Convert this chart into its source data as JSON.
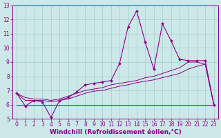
{
  "xlabel": "Windchill (Refroidissement éolien,°C)",
  "background_color": "#cce8e8",
  "grid_color": "#aacccc",
  "line_color": "#880088",
  "x_data": [
    0,
    1,
    2,
    3,
    4,
    5,
    6,
    7,
    8,
    9,
    10,
    11,
    12,
    13,
    14,
    15,
    16,
    17,
    18,
    19,
    20,
    21,
    22,
    23
  ],
  "y_main": [
    6.8,
    5.9,
    6.3,
    6.2,
    5.1,
    6.3,
    6.5,
    6.9,
    7.4,
    7.5,
    7.6,
    7.7,
    8.9,
    11.5,
    12.6,
    10.4,
    8.5,
    11.7,
    10.5,
    9.2,
    9.1,
    9.1,
    9.1,
    6.0
  ],
  "y_line1": [
    6.8,
    6.5,
    6.4,
    6.4,
    6.3,
    6.4,
    6.6,
    6.8,
    7.0,
    7.1,
    7.2,
    7.4,
    7.5,
    7.6,
    7.7,
    7.9,
    8.0,
    8.2,
    8.4,
    8.6,
    9.0,
    9.0,
    8.85,
    6.0
  ],
  "y_line2": [
    6.8,
    6.3,
    6.3,
    6.3,
    6.2,
    6.3,
    6.4,
    6.6,
    6.8,
    6.95,
    7.0,
    7.15,
    7.3,
    7.4,
    7.55,
    7.65,
    7.75,
    7.9,
    8.05,
    8.2,
    8.5,
    8.7,
    8.85,
    6.0
  ],
  "y_flat": [
    6.0,
    6.0,
    6.0,
    6.0,
    6.0,
    6.0,
    6.0,
    6.0,
    6.0,
    6.0,
    6.0,
    6.0,
    6.0,
    6.0,
    6.0,
    6.0,
    6.0,
    6.0,
    6.0,
    6.0,
    6.0,
    6.0,
    6.0,
    6.0
  ],
  "ylim": [
    5,
    13
  ],
  "xlim_min": -0.5,
  "xlim_max": 23.5,
  "yticks": [
    5,
    6,
    7,
    8,
    9,
    10,
    11,
    12,
    13
  ],
  "xticks": [
    0,
    1,
    2,
    3,
    4,
    5,
    6,
    7,
    8,
    9,
    10,
    11,
    12,
    13,
    14,
    15,
    16,
    17,
    18,
    19,
    20,
    21,
    22,
    23
  ],
  "tick_fontsize": 5.5,
  "xlabel_fontsize": 6.5
}
